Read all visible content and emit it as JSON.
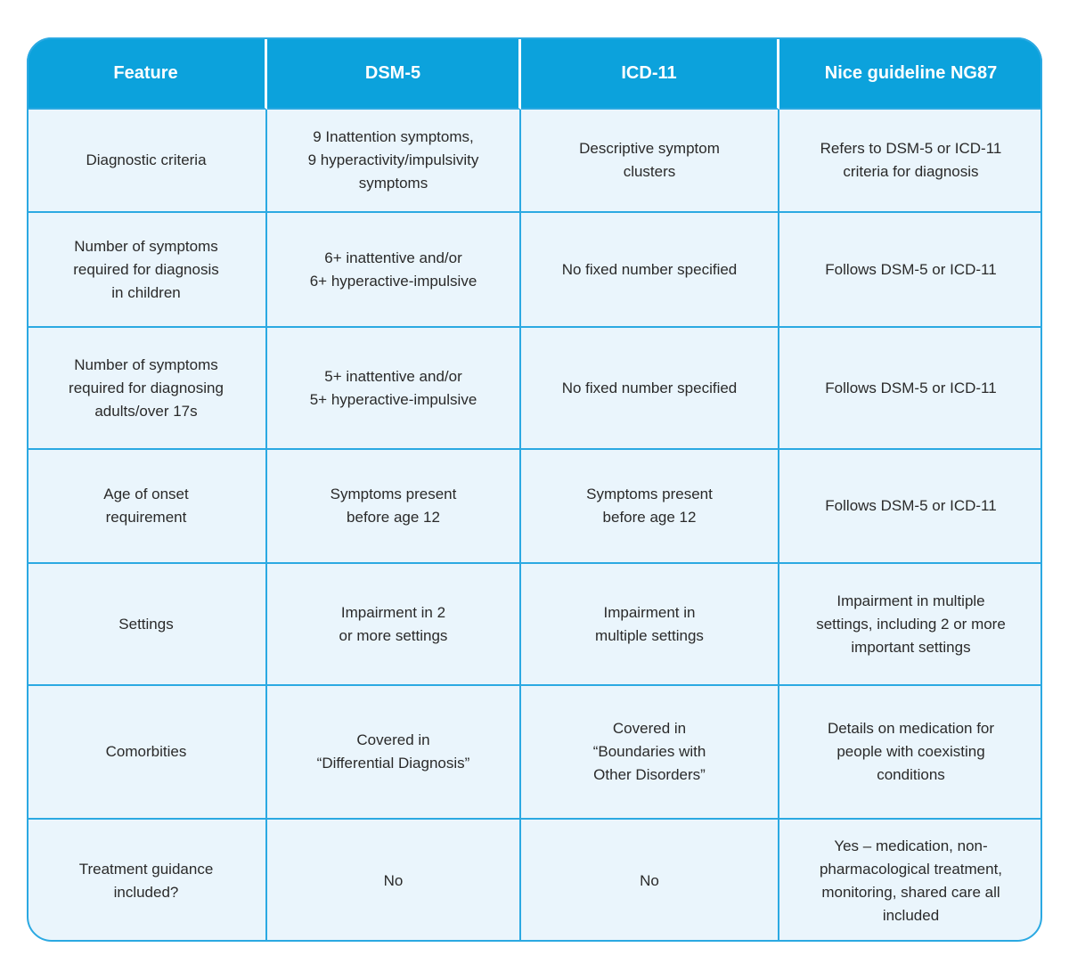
{
  "colors": {
    "header_bg": "#0CA2DC",
    "border": "#2BA9E2",
    "cell_bg": "#EAF5FC",
    "header_text": "#FFFFFF",
    "body_text": "#2A2A2A",
    "page_bg": "#FFFFFF"
  },
  "table": {
    "columns": [
      "Feature",
      "DSM-5",
      "ICD-11",
      "Nice guideline NG87"
    ],
    "rows": [
      {
        "cells": [
          "Diagnostic criteria",
          "9 Inattention symptoms,\n9 hyperactivity/impulsivity\nsymptoms",
          "Descriptive symptom\nclusters",
          "Refers to DSM-5 or ICD-11\ncriteria for diagnosis"
        ]
      },
      {
        "cells": [
          "Number of symptoms\nrequired for diagnosis\nin children",
          "6+ inattentive and/or\n6+ hyperactive-impulsive",
          "No fixed number specified",
          "Follows DSM-5 or ICD-11"
        ]
      },
      {
        "cells": [
          "Number of symptoms\nrequired for diagnosing\nadults/over 17s",
          "5+ inattentive and/or\n5+ hyperactive-impulsive",
          "No fixed number specified",
          "Follows DSM-5 or ICD-11"
        ]
      },
      {
        "cells": [
          "Age of onset\nrequirement",
          "Symptoms present\nbefore age 12",
          "Symptoms present\nbefore age 12",
          "Follows DSM-5 or ICD-11"
        ]
      },
      {
        "cells": [
          "Settings",
          "Impairment in 2\nor more settings",
          "Impairment in\nmultiple settings",
          "Impairment in multiple\nsettings, including 2 or more\nimportant settings"
        ]
      },
      {
        "cells": [
          "Comorbities",
          "Covered in\n“Differential Diagnosis”",
          "Covered in\n“Boundaries with\nOther Disorders”",
          "Details on medication for\npeople with coexisting\nconditions"
        ]
      },
      {
        "cells": [
          "Treatment guidance\nincluded?",
          "No",
          "No",
          "Yes – medication, non-\npharmacological treatment,\nmonitoring, shared care all\nincluded"
        ]
      }
    ]
  }
}
